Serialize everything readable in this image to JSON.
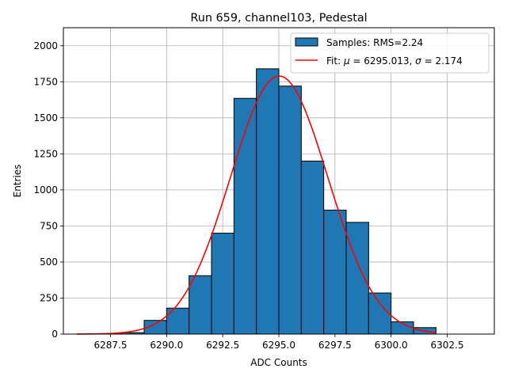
{
  "chart_data": {
    "type": "bar",
    "title": "Run 659, channel103, Pedestal",
    "xlabel": "ADC Counts",
    "ylabel": "Entries",
    "xlim": [
      6285.4,
      6304.6
    ],
    "ylim": [
      0,
      2125
    ],
    "grid": true,
    "legend_position": "top-right",
    "x_ticks": [
      6287.5,
      6290.0,
      6292.5,
      6295.0,
      6297.5,
      6300.0,
      6302.5
    ],
    "x_tick_labels": [
      "6287.5",
      "6290.0",
      "6292.5",
      "6295.0",
      "6297.5",
      "6300.0",
      "6302.5"
    ],
    "y_ticks": [
      0,
      250,
      500,
      750,
      1000,
      1250,
      1500,
      1750,
      2000
    ],
    "y_tick_labels": [
      "0",
      "250",
      "500",
      "750",
      "1000",
      "1250",
      "1500",
      "1750",
      "2000"
    ],
    "bin_edges": [
      6286,
      6287,
      6288,
      6289,
      6290,
      6291,
      6292,
      6293,
      6294,
      6295,
      6296,
      6297,
      6298,
      6299,
      6300,
      6301,
      6302,
      6303,
      6304
    ],
    "counts": [
      0,
      2,
      10,
      95,
      180,
      405,
      700,
      1635,
      1840,
      1720,
      1200,
      860,
      775,
      285,
      85,
      45,
      0,
      0
    ],
    "series": [
      {
        "name": "Samples: RMS=2.24",
        "kind": "histogram",
        "color": "#1f77b4",
        "edgecolor": "#000000"
      },
      {
        "name": "Fit: μ = 6295.013, σ = 2.174",
        "kind": "gaussian-fit",
        "color": "#ff0000",
        "mu": 6295.013,
        "sigma": 2.174,
        "amplitude": 1790,
        "x_range": [
          6286,
          6302
        ]
      }
    ],
    "legend": [
      {
        "label_prefix": "Samples: RMS=2.24",
        "type": "patch"
      },
      {
        "label_prefix": "Fit: ",
        "label_mu": "μ",
        "label_mid": " = 6295.013, ",
        "label_sigma": "σ",
        "label_end": " = 2.174",
        "type": "line"
      }
    ]
  }
}
